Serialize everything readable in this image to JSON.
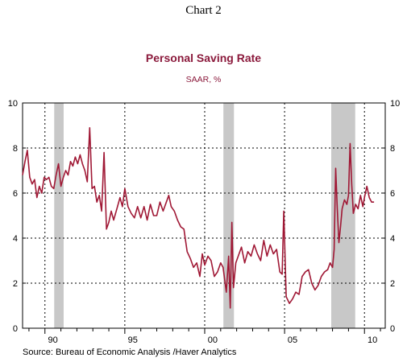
{
  "header": {
    "chart_number": "Chart 2"
  },
  "footer": {
    "source": "Source:  Bureau of Economic Analysis /Haver Analytics"
  },
  "chart_data": {
    "type": "line",
    "title": "Personal Saving Rate",
    "subtitle": "SAAR, %",
    "xlabel": "",
    "ylabel": "",
    "xlim": [
      1988.6,
      2011.3
    ],
    "ylim": [
      0,
      10
    ],
    "y_ticks": [
      0,
      2,
      4,
      6,
      8,
      10
    ],
    "x_tick_labels": [
      {
        "x": 1990,
        "label": "90"
      },
      {
        "x": 1995,
        "label": "95"
      },
      {
        "x": 2000,
        "label": "00"
      },
      {
        "x": 2005,
        "label": "05"
      },
      {
        "x": 2010,
        "label": "10"
      }
    ],
    "grid": true,
    "line_color": "#a01835",
    "recession_color": "#c8c8c8",
    "recessions": [
      {
        "start": 1990.58,
        "end": 1991.17
      },
      {
        "start": 2001.17,
        "end": 2001.83
      },
      {
        "start": 2007.92,
        "end": 2009.42
      }
    ],
    "series": [
      {
        "x": [
          1988.6,
          1988.75,
          1988.9,
          1989.05,
          1989.2,
          1989.35,
          1989.5,
          1989.65,
          1989.8,
          1989.95,
          1990.1,
          1990.25,
          1990.4,
          1990.55,
          1990.7,
          1990.85,
          1991.0,
          1991.15,
          1991.3,
          1991.45,
          1991.6,
          1991.75,
          1991.9,
          1992.05,
          1992.2,
          1992.35,
          1992.5,
          1992.65,
          1992.8,
          1992.95,
          1993.1,
          1993.25,
          1993.4,
          1993.55,
          1993.7,
          1993.85,
          1994.0,
          1994.15,
          1994.3,
          1994.5,
          1994.7,
          1994.85,
          1995.0,
          1995.2,
          1995.4,
          1995.6,
          1995.8,
          1996.0,
          1996.2,
          1996.4,
          1996.6,
          1996.8,
          1997.0,
          1997.2,
          1997.4,
          1997.6,
          1997.75,
          1997.9,
          1998.1,
          1998.3,
          1998.5,
          1998.7,
          1998.9,
          1999.1,
          1999.3,
          1999.5,
          1999.7,
          1999.85,
          2000.0,
          2000.2,
          2000.4,
          2000.6,
          2000.8,
          2001.0,
          2001.15,
          2001.35,
          2001.5,
          2001.6,
          2001.7,
          2001.8,
          2001.95,
          2002.1,
          2002.3,
          2002.5,
          2002.7,
          2002.9,
          2003.1,
          2003.3,
          2003.5,
          2003.7,
          2003.9,
          2004.1,
          2004.3,
          2004.5,
          2004.7,
          2004.85,
          2004.95,
          2005.1,
          2005.3,
          2005.5,
          2005.7,
          2005.9,
          2006.1,
          2006.3,
          2006.5,
          2006.7,
          2006.9,
          2007.1,
          2007.3,
          2007.5,
          2007.7,
          2007.85,
          2008.0,
          2008.1,
          2008.2,
          2008.3,
          2008.4,
          2008.5,
          2008.6,
          2008.75,
          2008.9,
          2009.0,
          2009.1,
          2009.2,
          2009.3,
          2009.45,
          2009.6,
          2009.75,
          2009.9,
          2010.0,
          2010.15,
          2010.3,
          2010.45,
          2010.6
        ],
        "y": [
          6.8,
          7.4,
          7.9,
          6.7,
          6.4,
          6.6,
          5.8,
          6.3,
          6.0,
          6.7,
          6.6,
          6.7,
          6.3,
          6.2,
          6.8,
          7.3,
          6.3,
          6.7,
          7.0,
          6.8,
          7.4,
          7.2,
          7.6,
          7.3,
          7.7,
          7.3,
          7.0,
          6.5,
          8.9,
          6.2,
          6.3,
          5.6,
          5.9,
          5.2,
          7.8,
          4.4,
          4.7,
          5.2,
          4.8,
          5.3,
          5.8,
          5.4,
          6.2,
          5.4,
          5.1,
          4.9,
          5.4,
          4.9,
          5.4,
          4.8,
          5.5,
          5.0,
          5.0,
          5.6,
          5.2,
          5.6,
          5.9,
          5.4,
          5.2,
          4.8,
          4.5,
          4.4,
          3.4,
          3.1,
          2.7,
          2.9,
          2.3,
          3.3,
          2.8,
          3.2,
          3.0,
          2.3,
          2.5,
          2.9,
          2.7,
          1.6,
          3.2,
          0.9,
          4.7,
          1.8,
          2.9,
          3.2,
          3.6,
          2.9,
          3.4,
          3.2,
          3.7,
          3.3,
          3.0,
          3.9,
          3.2,
          3.7,
          3.3,
          3.5,
          2.5,
          2.4,
          5.2,
          1.4,
          1.1,
          1.3,
          1.6,
          1.5,
          2.3,
          2.5,
          2.6,
          2.0,
          1.7,
          1.9,
          2.3,
          2.5,
          2.6,
          2.9,
          2.7,
          3.5,
          7.1,
          5.3,
          3.8,
          4.5,
          5.3,
          5.7,
          5.5,
          5.9,
          8.2,
          6.4,
          5.1,
          5.5,
          5.3,
          5.9,
          5.4,
          5.8,
          6.3,
          5.8,
          5.6,
          5.6
        ]
      }
    ]
  }
}
